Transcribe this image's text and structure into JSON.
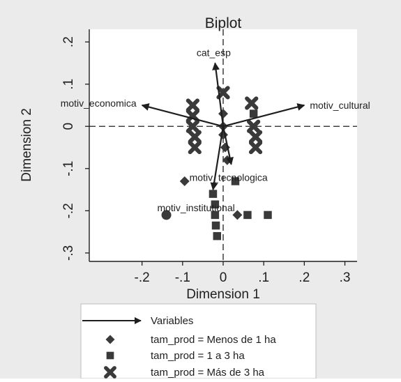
{
  "chart_data": {
    "type": "scatter",
    "title": "Biplot",
    "xlabel": "Dimension 1",
    "ylabel": "Dimension 2",
    "xlim": [
      -0.33,
      0.33
    ],
    "ylim": [
      -0.32,
      0.23
    ],
    "xticks": [
      -0.2,
      -0.1,
      0,
      0.1,
      0.2,
      0.3
    ],
    "xtick_labels": [
      "-.2",
      "-.1",
      "0",
      ".1",
      ".2",
      ".3"
    ],
    "yticks": [
      -0.3,
      -0.2,
      -0.1,
      0,
      0.1,
      0.2
    ],
    "ytick_labels": [
      "-.3",
      "-.2",
      "-.1",
      "0",
      ".1",
      ".2"
    ],
    "reference_lines": {
      "x": 0,
      "y": 0,
      "style": "dashed"
    },
    "grid": false,
    "legend_position": "bottom",
    "vectors": [
      {
        "label": "cat_esp",
        "x": -0.02,
        "y": 0.15
      },
      {
        "label": "motiv_economica",
        "x": -0.2,
        "y": 0.05
      },
      {
        "label": "motiv_cultural",
        "x": 0.2,
        "y": 0.05
      },
      {
        "label": "motiv_tecnologica",
        "x": 0.02,
        "y": -0.09
      },
      {
        "label": "motiv_institutional",
        "x": -0.025,
        "y": -0.15
      }
    ],
    "series": [
      {
        "name": "tam_prod = Menos de 1 ha",
        "marker": "diamond",
        "points": [
          {
            "x": 0.0,
            "y": 0.03
          },
          {
            "x": 0.0,
            "y": 0.0
          },
          {
            "x": 0.0,
            "y": -0.02
          },
          {
            "x": 0.005,
            "y": -0.05
          },
          {
            "x": 0.01,
            "y": -0.08
          },
          {
            "x": 0.035,
            "y": -0.21
          },
          {
            "x": -0.095,
            "y": -0.13
          }
        ]
      },
      {
        "name": "tam_prod = 1 a 3 ha",
        "marker": "square",
        "points": [
          {
            "x": -0.025,
            "y": -0.16
          },
          {
            "x": -0.02,
            "y": -0.185
          },
          {
            "x": -0.02,
            "y": -0.21
          },
          {
            "x": -0.018,
            "y": -0.235
          },
          {
            "x": -0.015,
            "y": -0.26
          },
          {
            "x": 0.03,
            "y": -0.13
          },
          {
            "x": 0.06,
            "y": -0.21
          },
          {
            "x": 0.11,
            "y": -0.21
          },
          {
            "x": 0.075,
            "y": 0.03
          }
        ]
      },
      {
        "name": "tam_prod = Más de 3 ha",
        "marker": "x",
        "points": [
          {
            "x": -0.075,
            "y": 0.05
          },
          {
            "x": -0.075,
            "y": 0.025
          },
          {
            "x": -0.075,
            "y": 0.0
          },
          {
            "x": -0.07,
            "y": -0.025
          },
          {
            "x": -0.07,
            "y": -0.05
          },
          {
            "x": 0.0,
            "y": 0.08
          },
          {
            "x": 0.07,
            "y": 0.055
          },
          {
            "x": 0.075,
            "y": 0.0
          },
          {
            "x": 0.08,
            "y": -0.025
          },
          {
            "x": 0.08,
            "y": -0.05
          }
        ]
      },
      {
        "name": "",
        "marker": "circle",
        "points": [
          {
            "x": -0.14,
            "y": -0.21
          }
        ]
      }
    ],
    "legend": [
      {
        "marker": "arrow",
        "label": "Variables"
      },
      {
        "marker": "diamond",
        "label": "tam_prod = Menos de 1 ha"
      },
      {
        "marker": "square",
        "label": "tam_prod = 1 a 3 ha"
      },
      {
        "marker": "x",
        "label": "tam_prod = Más de 3 ha"
      }
    ]
  },
  "colors": {
    "outer_background": "#ebebeb",
    "plot_background": "#ffffff",
    "ink": "#1e1e1e",
    "marker": "#3a3a3a"
  }
}
